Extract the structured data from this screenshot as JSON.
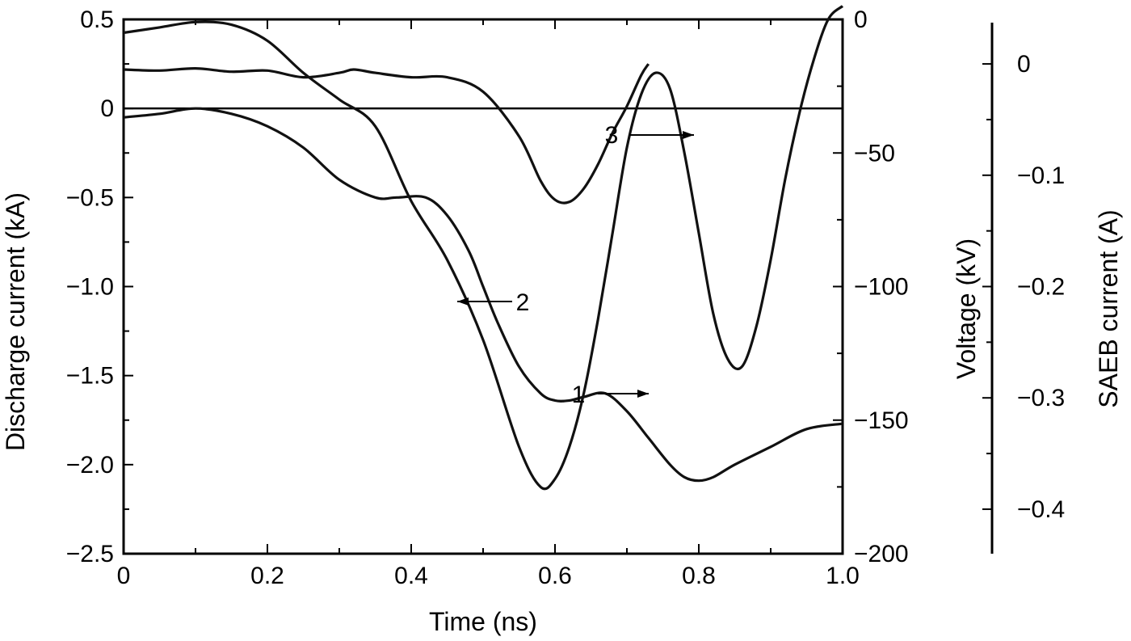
{
  "chart_data": {
    "type": "line",
    "xlabel": "Time (ns)",
    "ylabel_left": "Discharge current (kA)",
    "ylabel_right1": "Voltage (kV)",
    "ylabel_right2": "SAEB current (A)",
    "xlim": [
      0,
      1.0
    ],
    "ylim_left": [
      -2.5,
      0.5
    ],
    "ylim_right1": [
      -200,
      0
    ],
    "ylim_right2": [
      -0.44,
      0.04
    ],
    "x_ticks": [
      "0",
      "0.2",
      "0.4",
      "0.6",
      "0.8",
      "1.0"
    ],
    "x_tick_values": [
      0,
      0.2,
      0.4,
      0.6,
      0.8,
      1.0
    ],
    "y_left_ticks": [
      "0.5",
      "0",
      "−0.5",
      "−1.0",
      "−1.5",
      "−2.0",
      "−2.5"
    ],
    "y_left_tick_values": [
      0.5,
      0,
      -0.5,
      -1.0,
      -1.5,
      -2.0,
      -2.5
    ],
    "y_right1_ticks": [
      "0",
      "−50",
      "−100",
      "−150",
      "−200"
    ],
    "y_right1_tick_values": [
      0,
      -50,
      -100,
      -150,
      -200
    ],
    "y_right2_ticks": [
      "0",
      "−0.1",
      "−0.2",
      "−0.3",
      "−0.4"
    ],
    "y_right2_tick_values": [
      0,
      -0.1,
      -0.2,
      -0.3,
      -0.4
    ],
    "grid": false,
    "reference_line": {
      "axis": "left",
      "y": 0
    },
    "series": [
      {
        "name": "1",
        "axis": "voltage",
        "x": [
          0,
          0.05,
          0.1,
          0.15,
          0.2,
          0.25,
          0.3,
          0.35,
          0.4,
          0.45,
          0.5,
          0.55,
          0.58,
          0.6,
          0.62,
          0.64,
          0.66,
          0.68,
          0.7,
          0.72,
          0.74,
          0.76,
          0.78,
          0.8,
          0.82,
          0.84,
          0.86,
          0.88,
          0.9,
          0.92,
          0.94,
          0.96,
          0.98,
          1.0
        ],
        "values": [
          -5,
          -3,
          -1,
          -2,
          -8,
          -20,
          -30,
          -40,
          -68,
          -90,
          -120,
          -160,
          -175,
          -172,
          -160,
          -140,
          -112,
          -80,
          -48,
          -28,
          -20,
          -26,
          -50,
          -80,
          -110,
          -127,
          -130,
          -115,
          -90,
          -60,
          -35,
          -15,
          0,
          5
        ]
      },
      {
        "name": "2",
        "axis": "left",
        "x": [
          0,
          0.05,
          0.1,
          0.15,
          0.2,
          0.25,
          0.3,
          0.35,
          0.38,
          0.42,
          0.45,
          0.48,
          0.5,
          0.52,
          0.55,
          0.58,
          0.6,
          0.62,
          0.64,
          0.67,
          0.7,
          0.73,
          0.76,
          0.78,
          0.8,
          0.82,
          0.85,
          0.9,
          0.95,
          1.0
        ],
        "values": [
          -0.05,
          -0.03,
          0.0,
          -0.03,
          -0.1,
          -0.22,
          -0.4,
          -0.5,
          -0.5,
          -0.5,
          -0.6,
          -0.8,
          -1.0,
          -1.2,
          -1.45,
          -1.6,
          -1.64,
          -1.64,
          -1.62,
          -1.6,
          -1.7,
          -1.85,
          -2.0,
          -2.07,
          -2.09,
          -2.07,
          -2.0,
          -1.9,
          -1.8,
          -1.77
        ]
      },
      {
        "name": "3",
        "axis": "saeb",
        "x": [
          0,
          0.05,
          0.1,
          0.15,
          0.2,
          0.25,
          0.3,
          0.32,
          0.35,
          0.4,
          0.45,
          0.5,
          0.55,
          0.58,
          0.6,
          0.62,
          0.64,
          0.66,
          0.68,
          0.7,
          0.72,
          0.73
        ],
        "values": [
          -0.005,
          -0.006,
          -0.004,
          -0.007,
          -0.006,
          -0.012,
          -0.008,
          -0.005,
          -0.008,
          -0.012,
          -0.012,
          -0.025,
          -0.065,
          -0.105,
          -0.122,
          -0.124,
          -0.112,
          -0.09,
          -0.062,
          -0.038,
          -0.01,
          0.0
        ]
      }
    ],
    "annotations": [
      {
        "label": "1",
        "arrow": "right"
      },
      {
        "label": "2",
        "arrow": "left"
      },
      {
        "label": "3",
        "arrow": "right"
      }
    ]
  }
}
